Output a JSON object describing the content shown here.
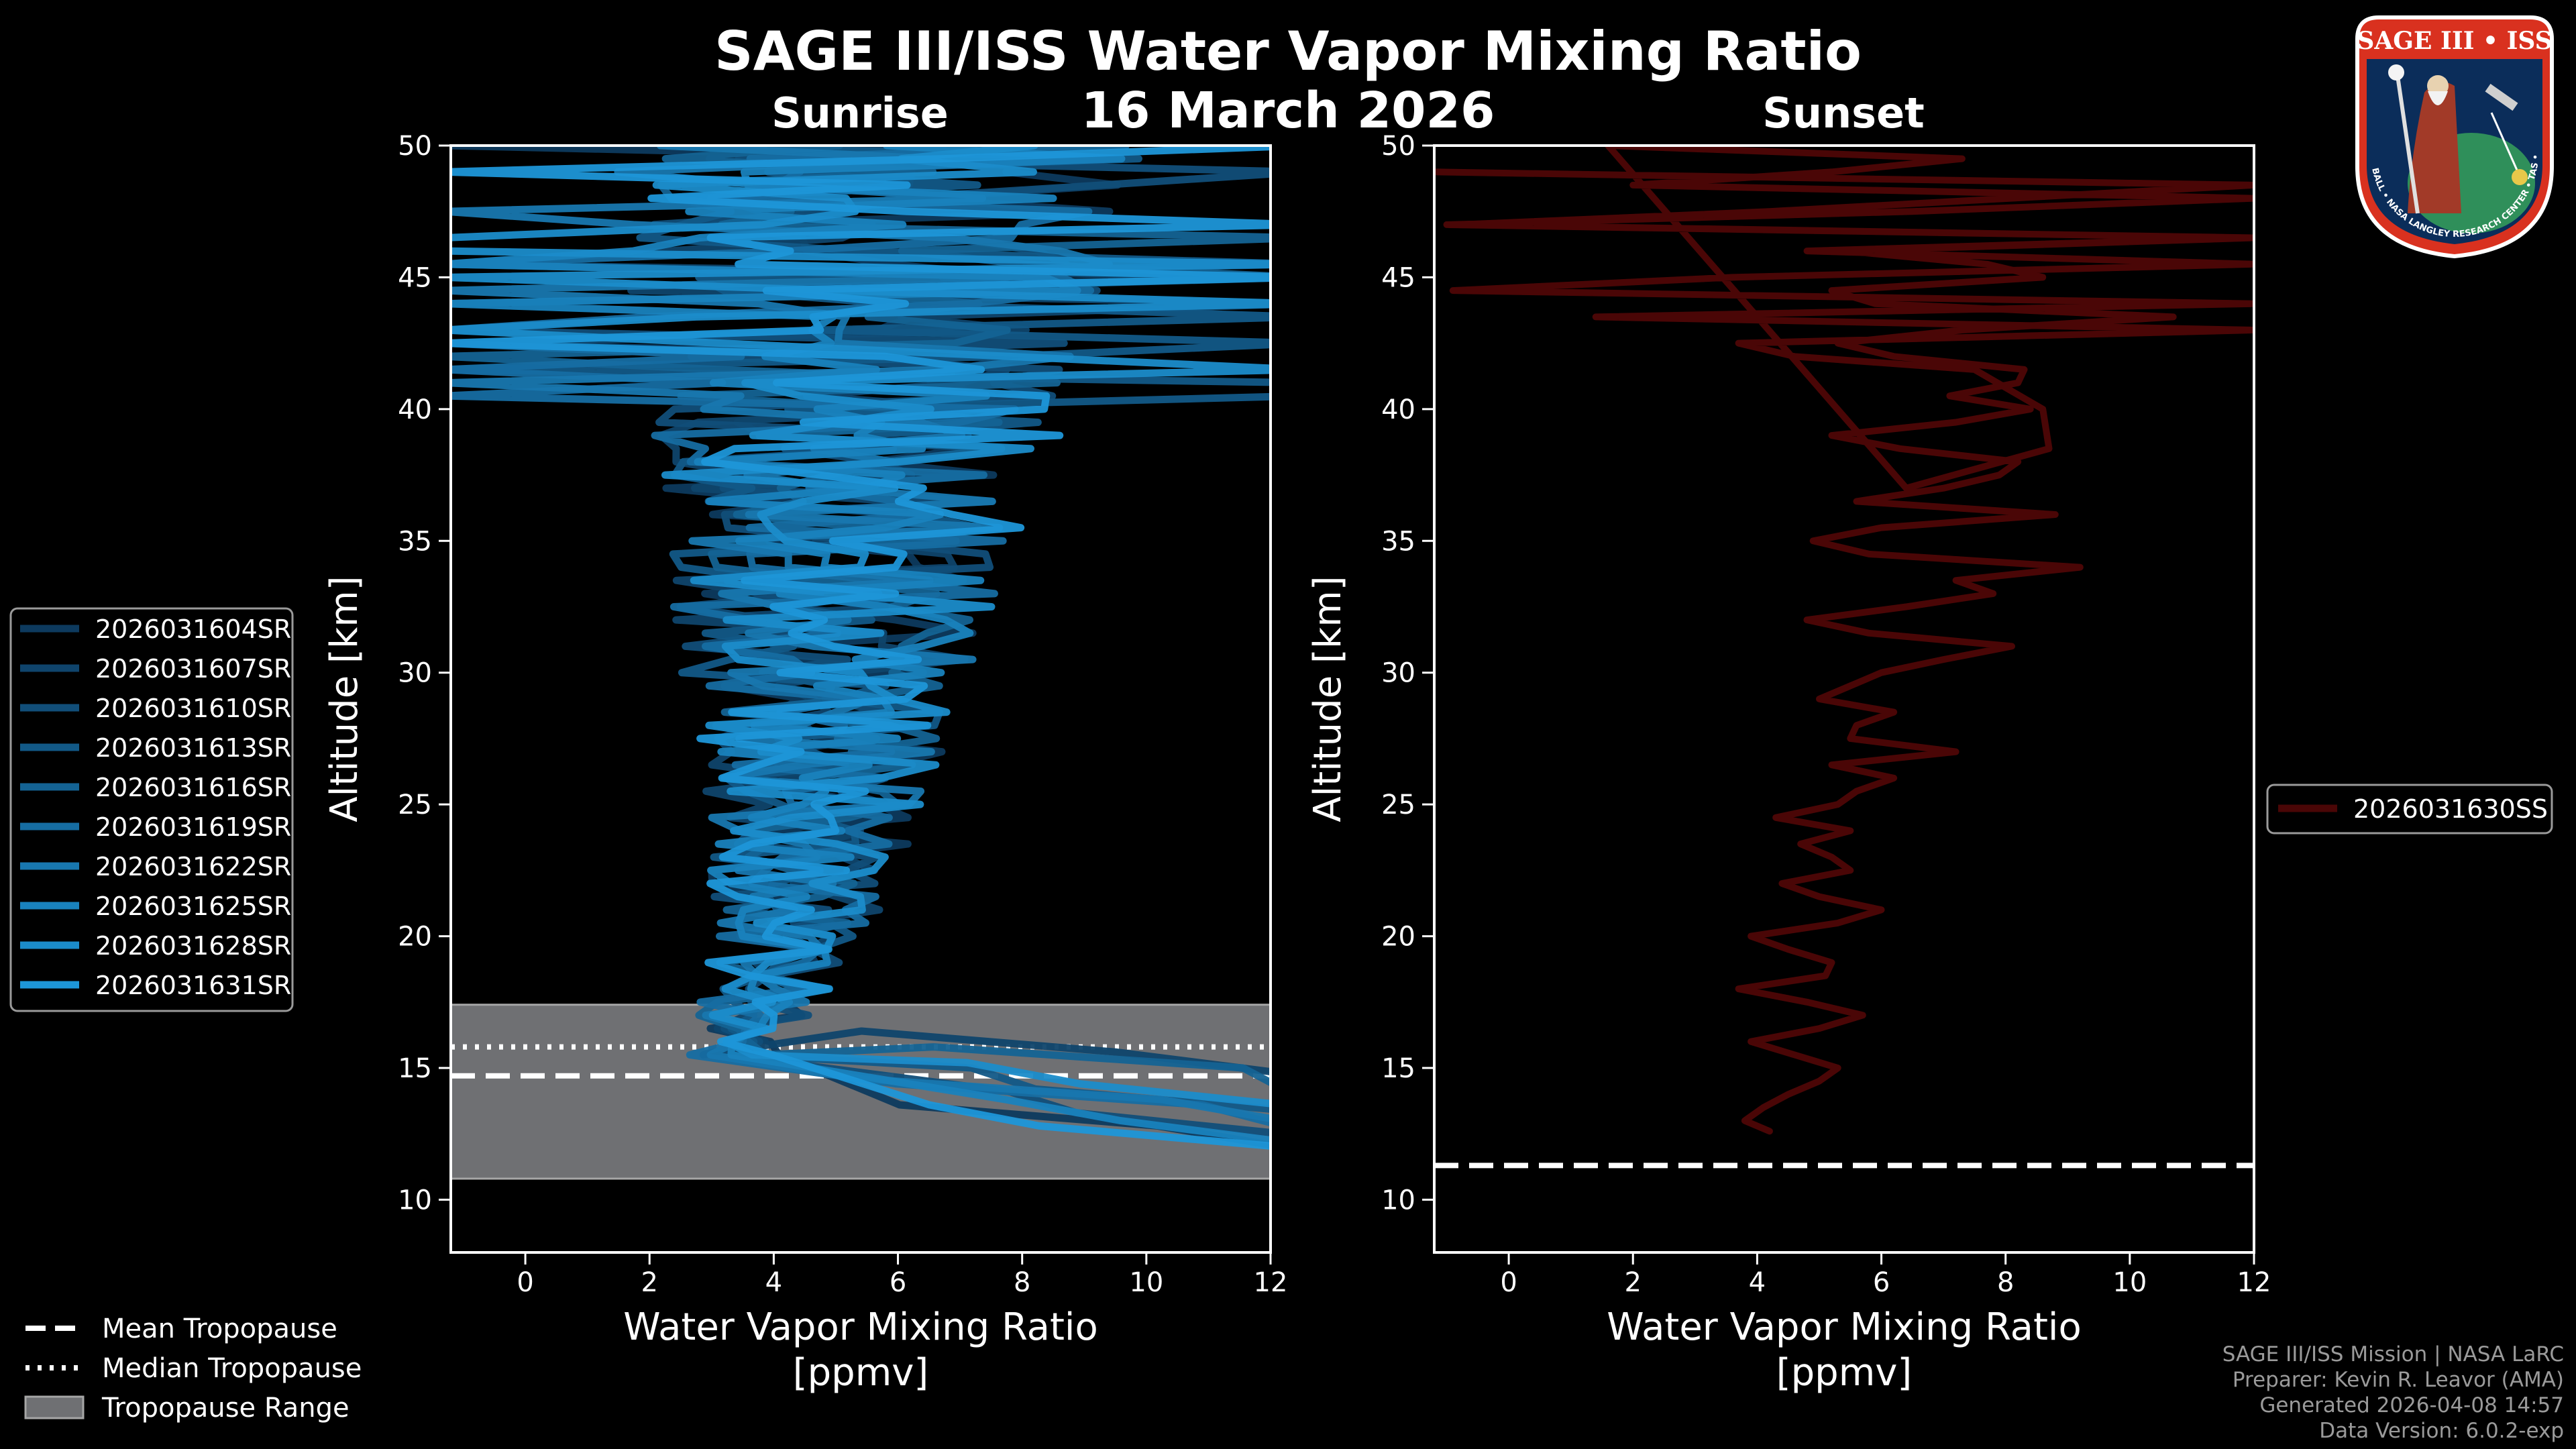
{
  "header": {
    "title": "SAGE III/ISS Water Vapor Mixing Ratio",
    "date": "16 March 2026"
  },
  "footer": {
    "credits": [
      "SAGE III/ISS Mission | NASA LaRC",
      "Preparer: Kevin R. Leavor (AMA)",
      "Generated 2026-04-08 14:57",
      "Data Version: 6.0.2-exp"
    ]
  },
  "logo": {
    "top_text": "SAGE III • ISS",
    "ring_text": "BALL • NASA LANGLEY RESEARCH CENTER • TAS • ESA"
  },
  "shared_legend": {
    "items": [
      {
        "label": "Mean Tropopause",
        "style": "dashed"
      },
      {
        "label": "Median Tropopause",
        "style": "dotted"
      },
      {
        "label": "Tropopause Range",
        "style": "patch"
      }
    ]
  },
  "colors": {
    "background": "#000000",
    "sunrise_dark": "#0d3a5e",
    "sunrise_light": "#1d96d8",
    "sunset": "#4a0606",
    "tropopause_range": "#6f7073"
  },
  "chart_data": [
    {
      "type": "line",
      "title": "Sunrise",
      "xlabel": "Water Vapor Mixing Ratio\n[ppmv]",
      "ylabel": "Altitude [km]",
      "xlim": [
        -1.2,
        12
      ],
      "ylim": [
        8,
        50
      ],
      "xticks": [
        0,
        2,
        4,
        6,
        8,
        10,
        12
      ],
      "yticks": [
        10,
        15,
        20,
        25,
        30,
        35,
        40,
        45,
        50
      ],
      "mean_tropopause": 14.7,
      "median_tropopause": 15.8,
      "tropopause_range": [
        10.8,
        17.4
      ],
      "series": [
        {
          "name": "2026031604SR",
          "alt_range": [
            12.0,
            50.0
          ],
          "seed": 1
        },
        {
          "name": "2026031607SR",
          "alt_range": [
            14.8,
            50.0
          ],
          "seed": 2
        },
        {
          "name": "2026031610SR",
          "alt_range": [
            12.5,
            50.0
          ],
          "seed": 3
        },
        {
          "name": "2026031613SR",
          "alt_range": [
            13.4,
            50.0
          ],
          "seed": 4
        },
        {
          "name": "2026031616SR",
          "alt_range": [
            14.2,
            50.0
          ],
          "seed": 5
        },
        {
          "name": "2026031619SR",
          "alt_range": [
            12.8,
            50.0
          ],
          "seed": 6
        },
        {
          "name": "2026031622SR",
          "alt_range": [
            13.0,
            50.0
          ],
          "seed": 7
        },
        {
          "name": "2026031625SR",
          "alt_range": [
            12.2,
            50.0
          ],
          "seed": 8
        },
        {
          "name": "2026031628SR",
          "alt_range": [
            13.6,
            50.0
          ],
          "seed": 9
        },
        {
          "name": "2026031631SR",
          "alt_range": [
            12.0,
            50.0
          ],
          "seed": 10
        }
      ]
    },
    {
      "type": "line",
      "title": "Sunset",
      "xlabel": "Water Vapor Mixing Ratio\n[ppmv]",
      "ylabel": "Altitude [km]",
      "xlim": [
        -1.2,
        12
      ],
      "ylim": [
        8,
        50
      ],
      "xticks": [
        0,
        2,
        4,
        6,
        8,
        10,
        12
      ],
      "yticks": [
        10,
        15,
        20,
        25,
        30,
        35,
        40,
        45,
        50
      ],
      "mean_tropopause": 11.3,
      "series": [
        {
          "name": "2026031630SS",
          "x": [
            4.2,
            3.8,
            4.1,
            4.5,
            5.0,
            5.3,
            4.6,
            3.9,
            5.0,
            5.7,
            4.8,
            3.7,
            5.1,
            5.2,
            4.5,
            3.9,
            5.3,
            6.0,
            5.0,
            4.4,
            5.5,
            5.2,
            4.7,
            5.5,
            4.3,
            5.3,
            5.6,
            6.2,
            5.2,
            7.2,
            5.5,
            5.6,
            6.2,
            5.0,
            5.5,
            6.0,
            7.0,
            8.1,
            5.8,
            4.8,
            6.4,
            7.8,
            7.2,
            9.2,
            5.8,
            4.9,
            6.0,
            8.8,
            5.6,
            7.0,
            7.9,
            8.2,
            6.3,
            5.2,
            7.2,
            8.4,
            7.1,
            8.2,
            8.3,
            6.2,
            5.3,
            7.3,
            10.7,
            5.9,
            5.2,
            8.6,
            7.7,
            5.4,
            12.0,
            -1.0,
            6.5,
            12.0,
            2.0,
            5.2,
            7.3,
            1.6,
            6.4,
            8.7,
            8.6,
            7.5,
            4.6,
            3.7,
            12.0,
            1.4,
            12.0,
            -0.9,
            3.6,
            12.0,
            4.8,
            12.0,
            -0.8,
            4.2,
            12.0,
            -1.2
          ],
          "y": [
            12.6,
            13.0,
            13.5,
            14.0,
            14.5,
            15.0,
            15.5,
            16.0,
            16.5,
            17.0,
            17.5,
            18.0,
            18.5,
            19.0,
            19.5,
            20.0,
            20.5,
            21.0,
            21.5,
            22.0,
            22.5,
            23.0,
            23.5,
            24.0,
            24.5,
            25.0,
            25.5,
            26.0,
            26.5,
            27.0,
            27.5,
            28.0,
            28.5,
            29.0,
            29.5,
            30.0,
            30.5,
            31.0,
            31.5,
            32.0,
            32.5,
            33.0,
            33.5,
            34.0,
            34.5,
            35.0,
            35.5,
            36.0,
            36.5,
            37.0,
            37.5,
            38.0,
            38.5,
            39.0,
            39.5,
            40.0,
            40.5,
            41.0,
            41.5,
            42.0,
            42.5,
            43.0,
            43.5,
            44.0,
            44.5,
            45.0,
            45.5,
            46.0,
            46.5,
            47.0,
            47.5,
            48.0,
            48.5,
            49.0,
            49.5,
            50.0,
            37.0,
            38.5,
            40.0,
            41.5,
            42.0,
            42.5,
            43.0,
            43.5,
            44.0,
            44.5,
            45.0,
            45.5,
            46.0,
            46.5,
            47.0,
            47.5,
            48.5,
            49.0
          ]
        }
      ]
    }
  ]
}
